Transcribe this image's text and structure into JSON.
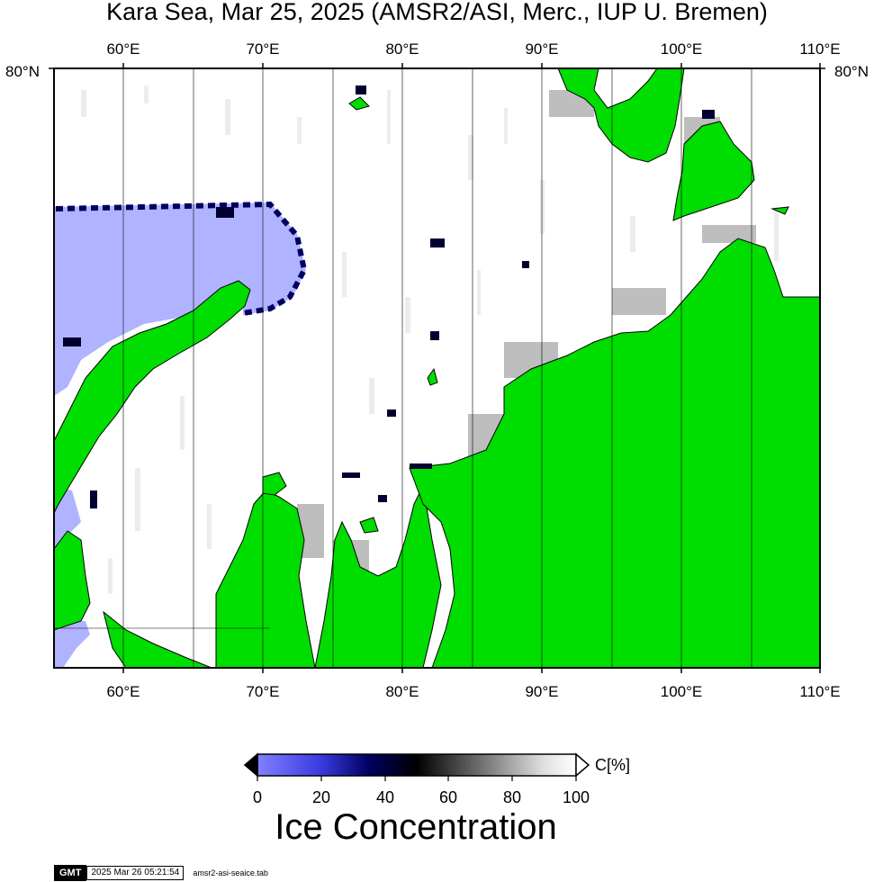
{
  "title": "Kara Sea, Mar 25, 2025 (AMSR2/ASI, Merc., IUP U. Bremen)",
  "map": {
    "top_lon_labels": [
      "60°E",
      "70°E",
      "80°E",
      "90°E",
      "100°E",
      "110°E"
    ],
    "bottom_lon_labels": [
      "60°E",
      "70°E",
      "80°E",
      "90°E",
      "100°E",
      "110°E"
    ],
    "lat_label_left": "80°N",
    "lat_label_right": "80°N",
    "colors": {
      "land": "#00dd00",
      "open_water": "#b0b3ff",
      "ice_full": "#ffffff",
      "frame": "#000000"
    }
  },
  "colorbar": {
    "unit": "C[%]",
    "ticks": [
      "0",
      "20",
      "40",
      "60",
      "80",
      "100"
    ],
    "title": "Ice Concentration"
  },
  "gmt_footer": {
    "logo": "GMT",
    "timestamp": "2025 Mar 26 05:21:54",
    "filename": "amsr2-asi-seaice.tab"
  }
}
